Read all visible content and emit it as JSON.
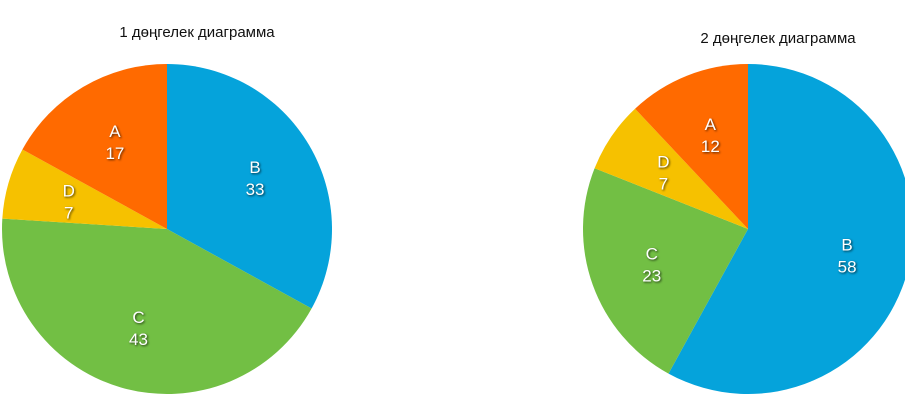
{
  "chart_data": [
    {
      "type": "pie",
      "title": "1 дөңгелек диаграмма",
      "categories": [
        "B",
        "C",
        "D",
        "A"
      ],
      "values": [
        33,
        43,
        7,
        17
      ],
      "colors": [
        "#05a3db",
        "#72bf44",
        "#f6c100",
        "#ff6a00"
      ]
    },
    {
      "type": "pie",
      "title": "2 дөңгелек диаграмма",
      "categories": [
        "B",
        "C",
        "D",
        "A"
      ],
      "values": [
        58,
        23,
        7,
        12
      ],
      "colors": [
        "#05a3db",
        "#72bf44",
        "#f6c100",
        "#ff6a00"
      ]
    }
  ]
}
